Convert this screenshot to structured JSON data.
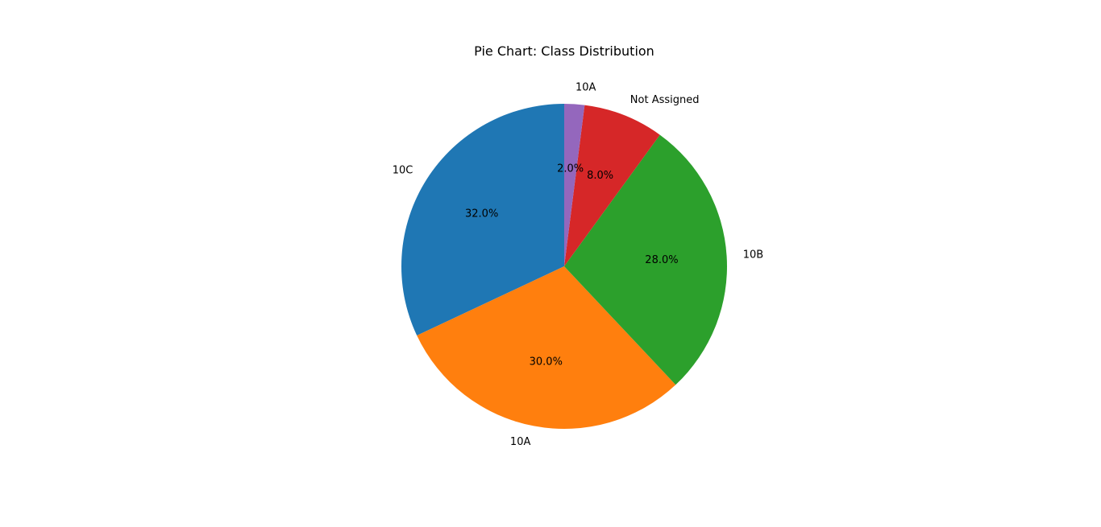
{
  "chart_data": {
    "type": "pie",
    "title": "Pie Chart: Class Distribution",
    "slices": [
      {
        "label": "10C",
        "value": 32.0,
        "pct_label": "32.0%",
        "color": "#1f77b4"
      },
      {
        "label": "10A",
        "value": 30.0,
        "pct_label": "30.0%",
        "color": "#ff7f0e"
      },
      {
        "label": "10B",
        "value": 28.0,
        "pct_label": "28.0%",
        "color": "#2ca02c"
      },
      {
        "label": "Not Assigned",
        "value": 8.0,
        "pct_label": "8.0%",
        "color": "#d62728"
      },
      {
        "label": "10A",
        "value": 2.0,
        "pct_label": "2.0%",
        "color": "#9467bd"
      }
    ],
    "start_angle_deg": 90,
    "direction": "counterclockwise",
    "legend": "none"
  }
}
